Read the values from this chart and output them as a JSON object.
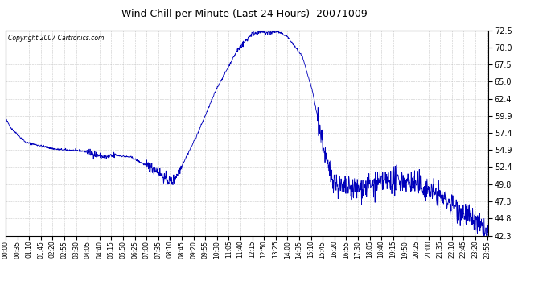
{
  "title": "Wind Chill per Minute (Last 24 Hours)  20071009",
  "copyright": "Copyright 2007 Cartronics.com",
  "line_color": "#0000bb",
  "bg_color": "#ffffff",
  "grid_color": "#bbbbbb",
  "ylim": [
    42.3,
    72.5
  ],
  "yticks": [
    42.3,
    44.8,
    47.3,
    49.8,
    52.4,
    54.9,
    57.4,
    59.9,
    62.4,
    65.0,
    67.5,
    70.0,
    72.5
  ],
  "xtick_labels": [
    "00:00",
    "00:35",
    "01:10",
    "01:45",
    "02:20",
    "02:55",
    "03:30",
    "04:05",
    "04:40",
    "05:15",
    "05:50",
    "06:25",
    "07:00",
    "07:35",
    "08:10",
    "08:45",
    "09:20",
    "09:55",
    "10:30",
    "11:05",
    "11:40",
    "12:15",
    "12:50",
    "13:25",
    "14:00",
    "14:35",
    "15:10",
    "15:45",
    "16:20",
    "16:55",
    "17:30",
    "18:05",
    "18:40",
    "19:15",
    "19:50",
    "20:25",
    "21:00",
    "21:35",
    "22:10",
    "22:45",
    "23:20",
    "23:55"
  ],
  "figsize": [
    6.9,
    3.75
  ],
  "dpi": 100
}
